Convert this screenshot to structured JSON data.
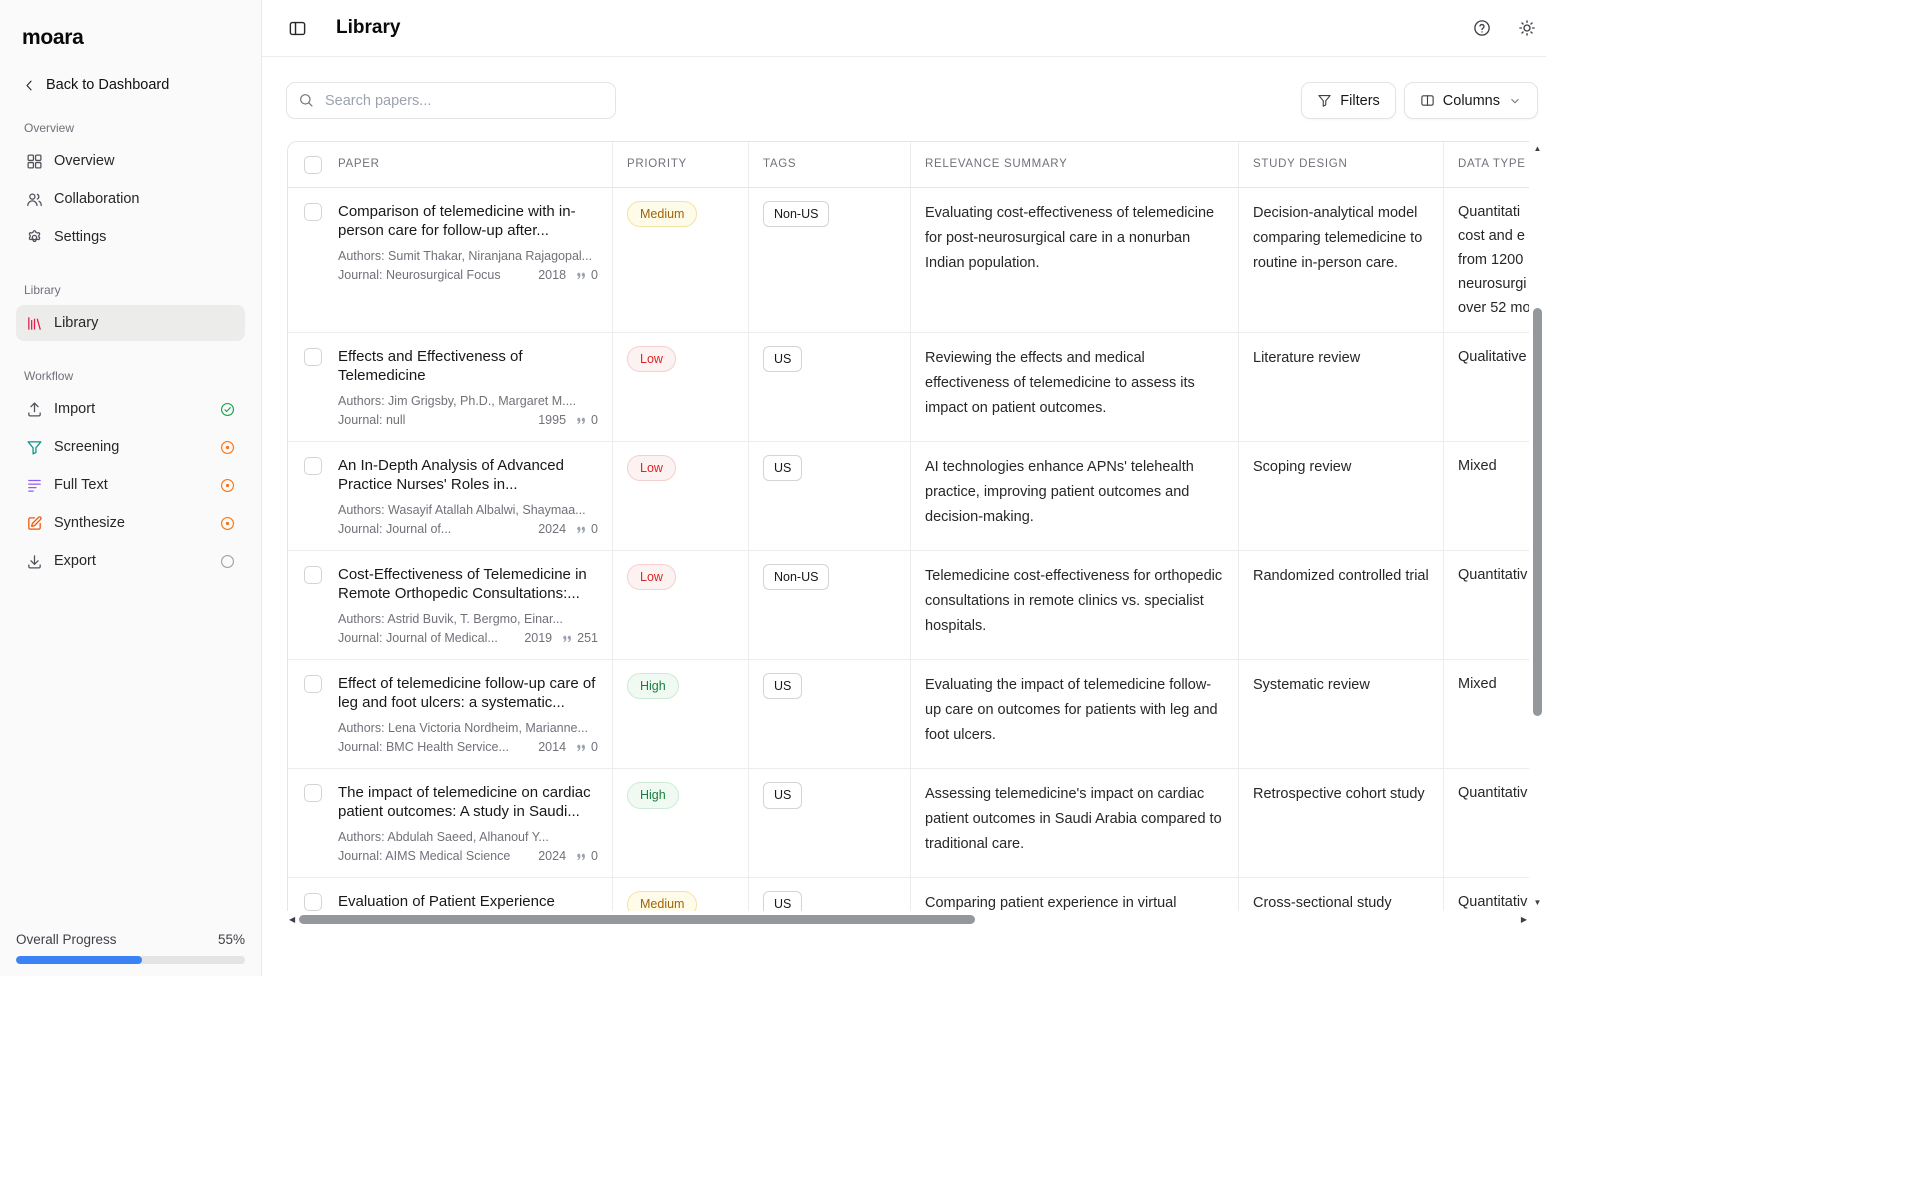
{
  "app": {
    "logo": "moara",
    "back_label": "Back to Dashboard"
  },
  "sidebar": {
    "sections": [
      {
        "label": "Overview",
        "items": [
          {
            "label": "Overview",
            "icon": "grid-icon"
          },
          {
            "label": "Collaboration",
            "icon": "users-icon"
          },
          {
            "label": "Settings",
            "icon": "gear-icon"
          }
        ]
      },
      {
        "label": "Library",
        "items": [
          {
            "label": "Library",
            "icon": "library-icon",
            "icon_color": "#e11d48",
            "active": true
          }
        ]
      },
      {
        "label": "Workflow",
        "items": [
          {
            "label": "Import",
            "icon": "upload-icon",
            "status": "done"
          },
          {
            "label": "Screening",
            "icon": "funnel-icon",
            "icon_color": "#0d9488",
            "status": "progress"
          },
          {
            "label": "Full Text",
            "icon": "text-lines-icon",
            "icon_color": "#8b5cf6",
            "status": "progress"
          },
          {
            "label": "Synthesize",
            "icon": "edit-icon",
            "icon_color": "#ea580c",
            "status": "progress"
          },
          {
            "label": "Export",
            "icon": "download-icon",
            "status": "pending"
          }
        ]
      }
    ],
    "progress": {
      "label": "Overall Progress",
      "value": "55%",
      "percent": 55,
      "bar_color": "#3b82f6"
    }
  },
  "header": {
    "title": "Library"
  },
  "toolbar": {
    "search_placeholder": "Search papers...",
    "filters_label": "Filters",
    "columns_label": "Columns"
  },
  "table": {
    "columns": [
      "PAPER",
      "PRIORITY",
      "TAGS",
      "RELEVANCE SUMMARY",
      "STUDY DESIGN",
      "DATA TYPE"
    ],
    "authors_label": "Authors:",
    "journal_label": "Journal:",
    "badge_colors": {
      "Medium": "#a16207",
      "Low": "#dc2626",
      "High": "#15803d"
    },
    "rows": [
      {
        "title": "Comparison of telemedicine with in-person care for follow-up after...",
        "authors": "Sumit Thakar, Niranjana Rajagopal...",
        "journal": "Neurosurgical Focus",
        "year": "2018",
        "citations": "0",
        "priority": "Medium",
        "tag": "Non-US",
        "relevance": "Evaluating cost-effectiveness of telemedicine for post-neurosurgical care in a nonurban Indian population.",
        "study_design": "Decision-analytical model comparing telemedicine to routine in-person care.",
        "data_type": [
          "Quantitati",
          "cost and e",
          "from 1200",
          "neurosurgi",
          "over 52 mo"
        ]
      },
      {
        "title": "Effects and Effectiveness of Telemedicine",
        "authors": "Jim Grigsby, Ph.D., Margaret M....",
        "journal": "null",
        "year": "1995",
        "citations": "0",
        "priority": "Low",
        "tag": "US",
        "relevance": "Reviewing the effects and medical effectiveness of telemedicine to assess its impact on patient outcomes.",
        "study_design": "Literature review",
        "data_type": [
          "Qualitative"
        ]
      },
      {
        "title": "An In-Depth Analysis of Advanced Practice Nurses' Roles in...",
        "authors": "Wasayif Atallah Albalwi, Shaymaa...",
        "journal": "Journal of...",
        "year": "2024",
        "citations": "0",
        "priority": "Low",
        "tag": "US",
        "relevance": "AI technologies enhance APNs' telehealth practice, improving patient outcomes and decision-making.",
        "study_design": "Scoping review",
        "data_type": [
          "Mixed"
        ]
      },
      {
        "title": "Cost-Effectiveness of Telemedicine in Remote Orthopedic Consultations:...",
        "authors": "Astrid Buvik, T. Bergmo, Einar...",
        "journal": "Journal of Medical...",
        "year": "2019",
        "citations": "251",
        "priority": "Low",
        "tag": "Non-US",
        "relevance": "Telemedicine cost-effectiveness for orthopedic consultations in remote clinics vs. specialist hospitals.",
        "study_design": "Randomized controlled trial",
        "data_type": [
          "Quantitativ"
        ]
      },
      {
        "title": "Effect of telemedicine follow-up care of leg and foot ulcers: a systematic...",
        "authors": "Lena Victoria Nordheim, Marianne...",
        "journal": "BMC Health Service...",
        "year": "2014",
        "citations": "0",
        "priority": "High",
        "tag": "US",
        "relevance": "Evaluating the impact of telemedicine follow-up care on outcomes for patients with leg and foot ulcers.",
        "study_design": "Systematic review",
        "data_type": [
          "Mixed"
        ]
      },
      {
        "title": "The impact of telemedicine on cardiac patient outcomes: A study in Saudi...",
        "authors": "Abdulah Saeed, Alhanouf Y...",
        "journal": "AIMS Medical Science",
        "year": "2024",
        "citations": "0",
        "priority": "High",
        "tag": "US",
        "relevance": "Assessing telemedicine's impact on cardiac patient outcomes in Saudi Arabia compared to traditional care.",
        "study_design": "Retrospective cohort study",
        "data_type": [
          "Quantitativ"
        ]
      },
      {
        "title": "Evaluation of Patient Experience During Virtual and In-Person Urgent...",
        "authors": "",
        "journal": "",
        "year": "",
        "citations": "",
        "priority": "Medium",
        "tag": "US",
        "relevance": "Comparing patient experience in virtual",
        "study_design": "Cross-sectional study",
        "data_type": [
          "Quantitativ"
        ]
      }
    ]
  }
}
